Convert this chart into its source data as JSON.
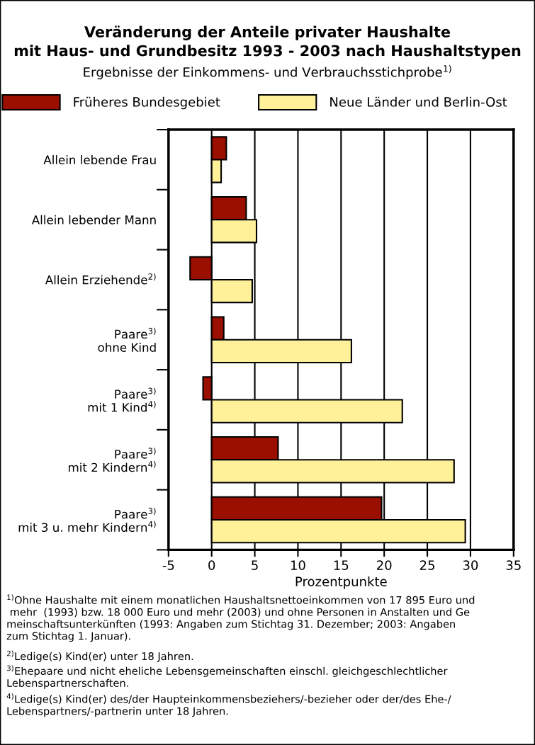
{
  "chart_data": {
    "type": "bar",
    "orientation": "horizontal",
    "title": "Veränderung der Anteile privater Haushalte\nmit Haus- und Grundbesitz 1993 - 2003 nach Haushaltstypen",
    "subtitle": "Ergebnisse der Einkommens- und Verbrauchsstichprobe$^{1)}$",
    "categories": [
      "Allein lebende Frau",
      "Allein lebender Mann",
      "Allein Erziehende$^{2)}$",
      "Paare$^{3)}$\nohne Kind",
      "Paare$^{3)}$\nmit 1 Kind$^{4)}$",
      "Paare$^{3)}$\nmit 2 Kindern$^{4)}$",
      "Paare$^{3)}$\nmit 3 u. mehr Kindern$^{4)}$"
    ],
    "series": [
      {
        "name": "Früheres Bundesgebiet",
        "color": "#9b0f00",
        "values": [
          1.7,
          4.0,
          -2.5,
          1.4,
          -1.0,
          7.7,
          19.7
        ]
      },
      {
        "name": "Neue Länder und Berlin-Ost",
        "color": "#fff09a",
        "values": [
          1.1,
          5.2,
          4.7,
          16.2,
          22.1,
          28.1,
          29.4
        ]
      }
    ],
    "xlabel": "Prozentpunkte",
    "xlim": [
      -5,
      35
    ],
    "xticks": [
      -5,
      0,
      5,
      10,
      15,
      20,
      25,
      30,
      35
    ],
    "grid": "x",
    "legend": "top",
    "annotations": [
      "$^{1)}$Ohne Haushalte mit einem monatlichen Haushaltsnettoeinkommen von 17 895 Euro und\n mehr  (1993) bzw. 18 000 Euro und mehr (2003) und ohne Personen in Anstalten und Ge\nmeinschaftsunterkünften (1993: Angaben zum Stichtag 31. Dezember; 2003: Angaben\nzum Stichtag 1. Januar).",
      "$^{2)}$Ledige(s) Kind(er) unter 18 Jahren.",
      "$^{3)}$Ehepaare und nicht eheliche Lebensgemeinschaften einschl. gleichgeschlechtlicher\nLebenspartnerschaften.",
      "$^{4)}$Ledige(s) Kind(er) des/der Haupteinkommensbeziehers/-bezieher oder der/des Ehe-/\nLebenspartners/-partnerin unter 18 Jahren."
    ]
  }
}
